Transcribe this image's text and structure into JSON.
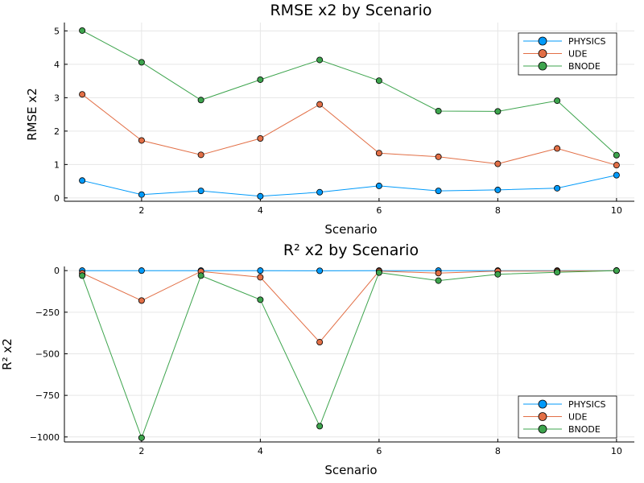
{
  "chart_data": [
    {
      "type": "line",
      "title": "RMSE x2 by Scenario",
      "xlabel": "Scenario",
      "ylabel": "RMSE x2",
      "xlim": [
        0.7,
        10.3
      ],
      "ylim": [
        -0.1,
        5.25
      ],
      "xticks": [
        2,
        4,
        6,
        8,
        10
      ],
      "yticks": [
        0,
        1,
        2,
        3,
        4,
        5
      ],
      "ytick_labels": [
        "0",
        "1",
        "2",
        "3",
        "4",
        "5"
      ],
      "grid": true,
      "legend_position": "top-right",
      "x": [
        1,
        2,
        3,
        4,
        5,
        6,
        7,
        8,
        9,
        10
      ],
      "series": [
        {
          "name": "PHYSICS",
          "color": "#009AFA",
          "values": [
            0.52,
            0.1,
            0.21,
            0.05,
            0.17,
            0.36,
            0.21,
            0.24,
            0.29,
            0.68
          ]
        },
        {
          "name": "UDE",
          "color": "#E26F46",
          "values": [
            3.1,
            1.72,
            1.29,
            1.78,
            2.8,
            1.34,
            1.23,
            1.02,
            1.48,
            0.98
          ]
        },
        {
          "name": "BNODE",
          "color": "#3DA44D",
          "values": [
            5.01,
            4.06,
            2.93,
            3.54,
            4.13,
            3.51,
            2.6,
            2.59,
            2.91,
            1.28
          ]
        }
      ]
    },
    {
      "type": "line",
      "title": "R² x2 by Scenario",
      "xlabel": "Scenario",
      "ylabel": "R² x2",
      "xlim": [
        0.7,
        10.3
      ],
      "ylim": [
        -1030,
        25
      ],
      "xticks": [
        2,
        4,
        6,
        8,
        10
      ],
      "yticks": [
        0,
        -250,
        -500,
        -750,
        -1000
      ],
      "ytick_labels": [
        "0",
        "−250",
        "−500",
        "−750",
        "−1000"
      ],
      "grid": true,
      "legend_position": "bottom-right",
      "x": [
        1,
        2,
        3,
        4,
        5,
        6,
        7,
        8,
        9,
        10
      ],
      "series": [
        {
          "name": "PHYSICS",
          "color": "#009AFA",
          "values": [
            0,
            0,
            0,
            0,
            -1,
            0,
            0,
            0,
            0,
            0
          ]
        },
        {
          "name": "UDE",
          "color": "#E26F46",
          "values": [
            -15,
            -180,
            -5,
            -40,
            -430,
            -3,
            -15,
            -3,
            -3,
            0
          ]
        },
        {
          "name": "BNODE",
          "color": "#3DA44D",
          "values": [
            -30,
            -1005,
            -30,
            -175,
            -935,
            -12,
            -60,
            -22,
            -10,
            0
          ]
        }
      ]
    }
  ]
}
